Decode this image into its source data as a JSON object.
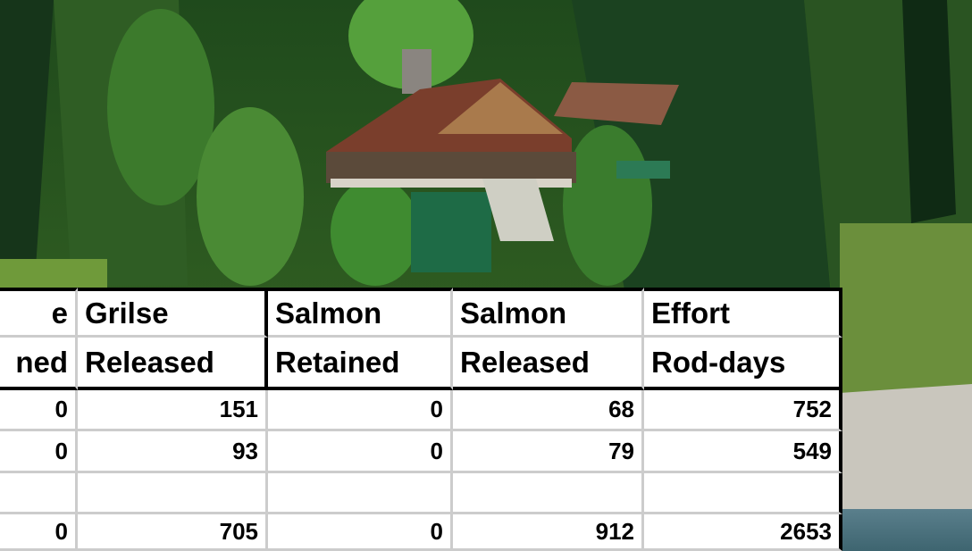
{
  "table": {
    "header": [
      [
        "e",
        "ned"
      ],
      [
        "Grilse",
        "Released"
      ],
      [
        "Salmon",
        "Retained"
      ],
      [
        "Salmon",
        "Released"
      ],
      [
        "Effort",
        "Rod-days"
      ]
    ],
    "rows": [
      [
        0,
        151,
        0,
        68,
        752
      ],
      [
        0,
        93,
        0,
        79,
        549
      ]
    ],
    "total": [
      0,
      705,
      0,
      912,
      2653
    ]
  }
}
